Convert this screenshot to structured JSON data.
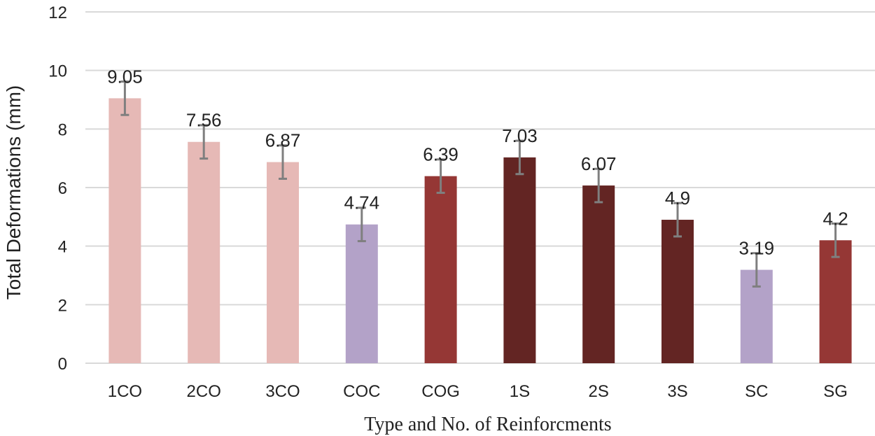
{
  "chart_data": {
    "type": "bar",
    "title": "",
    "xlabel": "Type and No. of Reinforcments",
    "ylabel": "Total Deformations (mm)",
    "ylim": [
      0,
      12
    ],
    "yticks": [
      0,
      2,
      4,
      6,
      8,
      10,
      12
    ],
    "grid": true,
    "categories": [
      "1CO",
      "2CO",
      "3CO",
      "COC",
      "COG",
      "1S",
      "2S",
      "3S",
      "SC",
      "SG"
    ],
    "values": [
      9.05,
      7.56,
      6.87,
      4.74,
      6.39,
      7.03,
      6.07,
      4.9,
      3.19,
      4.2
    ],
    "data_labels": [
      "9.05",
      "7.56",
      "6.87",
      "4.74",
      "6.39",
      "7.03",
      "6.07",
      "4.9",
      "3.19",
      "4.2"
    ],
    "error": [
      0.57,
      0.57,
      0.57,
      0.57,
      0.57,
      0.57,
      0.57,
      0.57,
      0.57,
      0.57
    ],
    "bar_colors": [
      "#e6b9b6",
      "#e6b9b6",
      "#e6b9b6",
      "#b3a2c8",
      "#953735",
      "#632523",
      "#632523",
      "#632523",
      "#b3a2c8",
      "#953735"
    ],
    "gridline_color": "#d9d9d9",
    "errorbar_color": "#7f7f7f"
  }
}
